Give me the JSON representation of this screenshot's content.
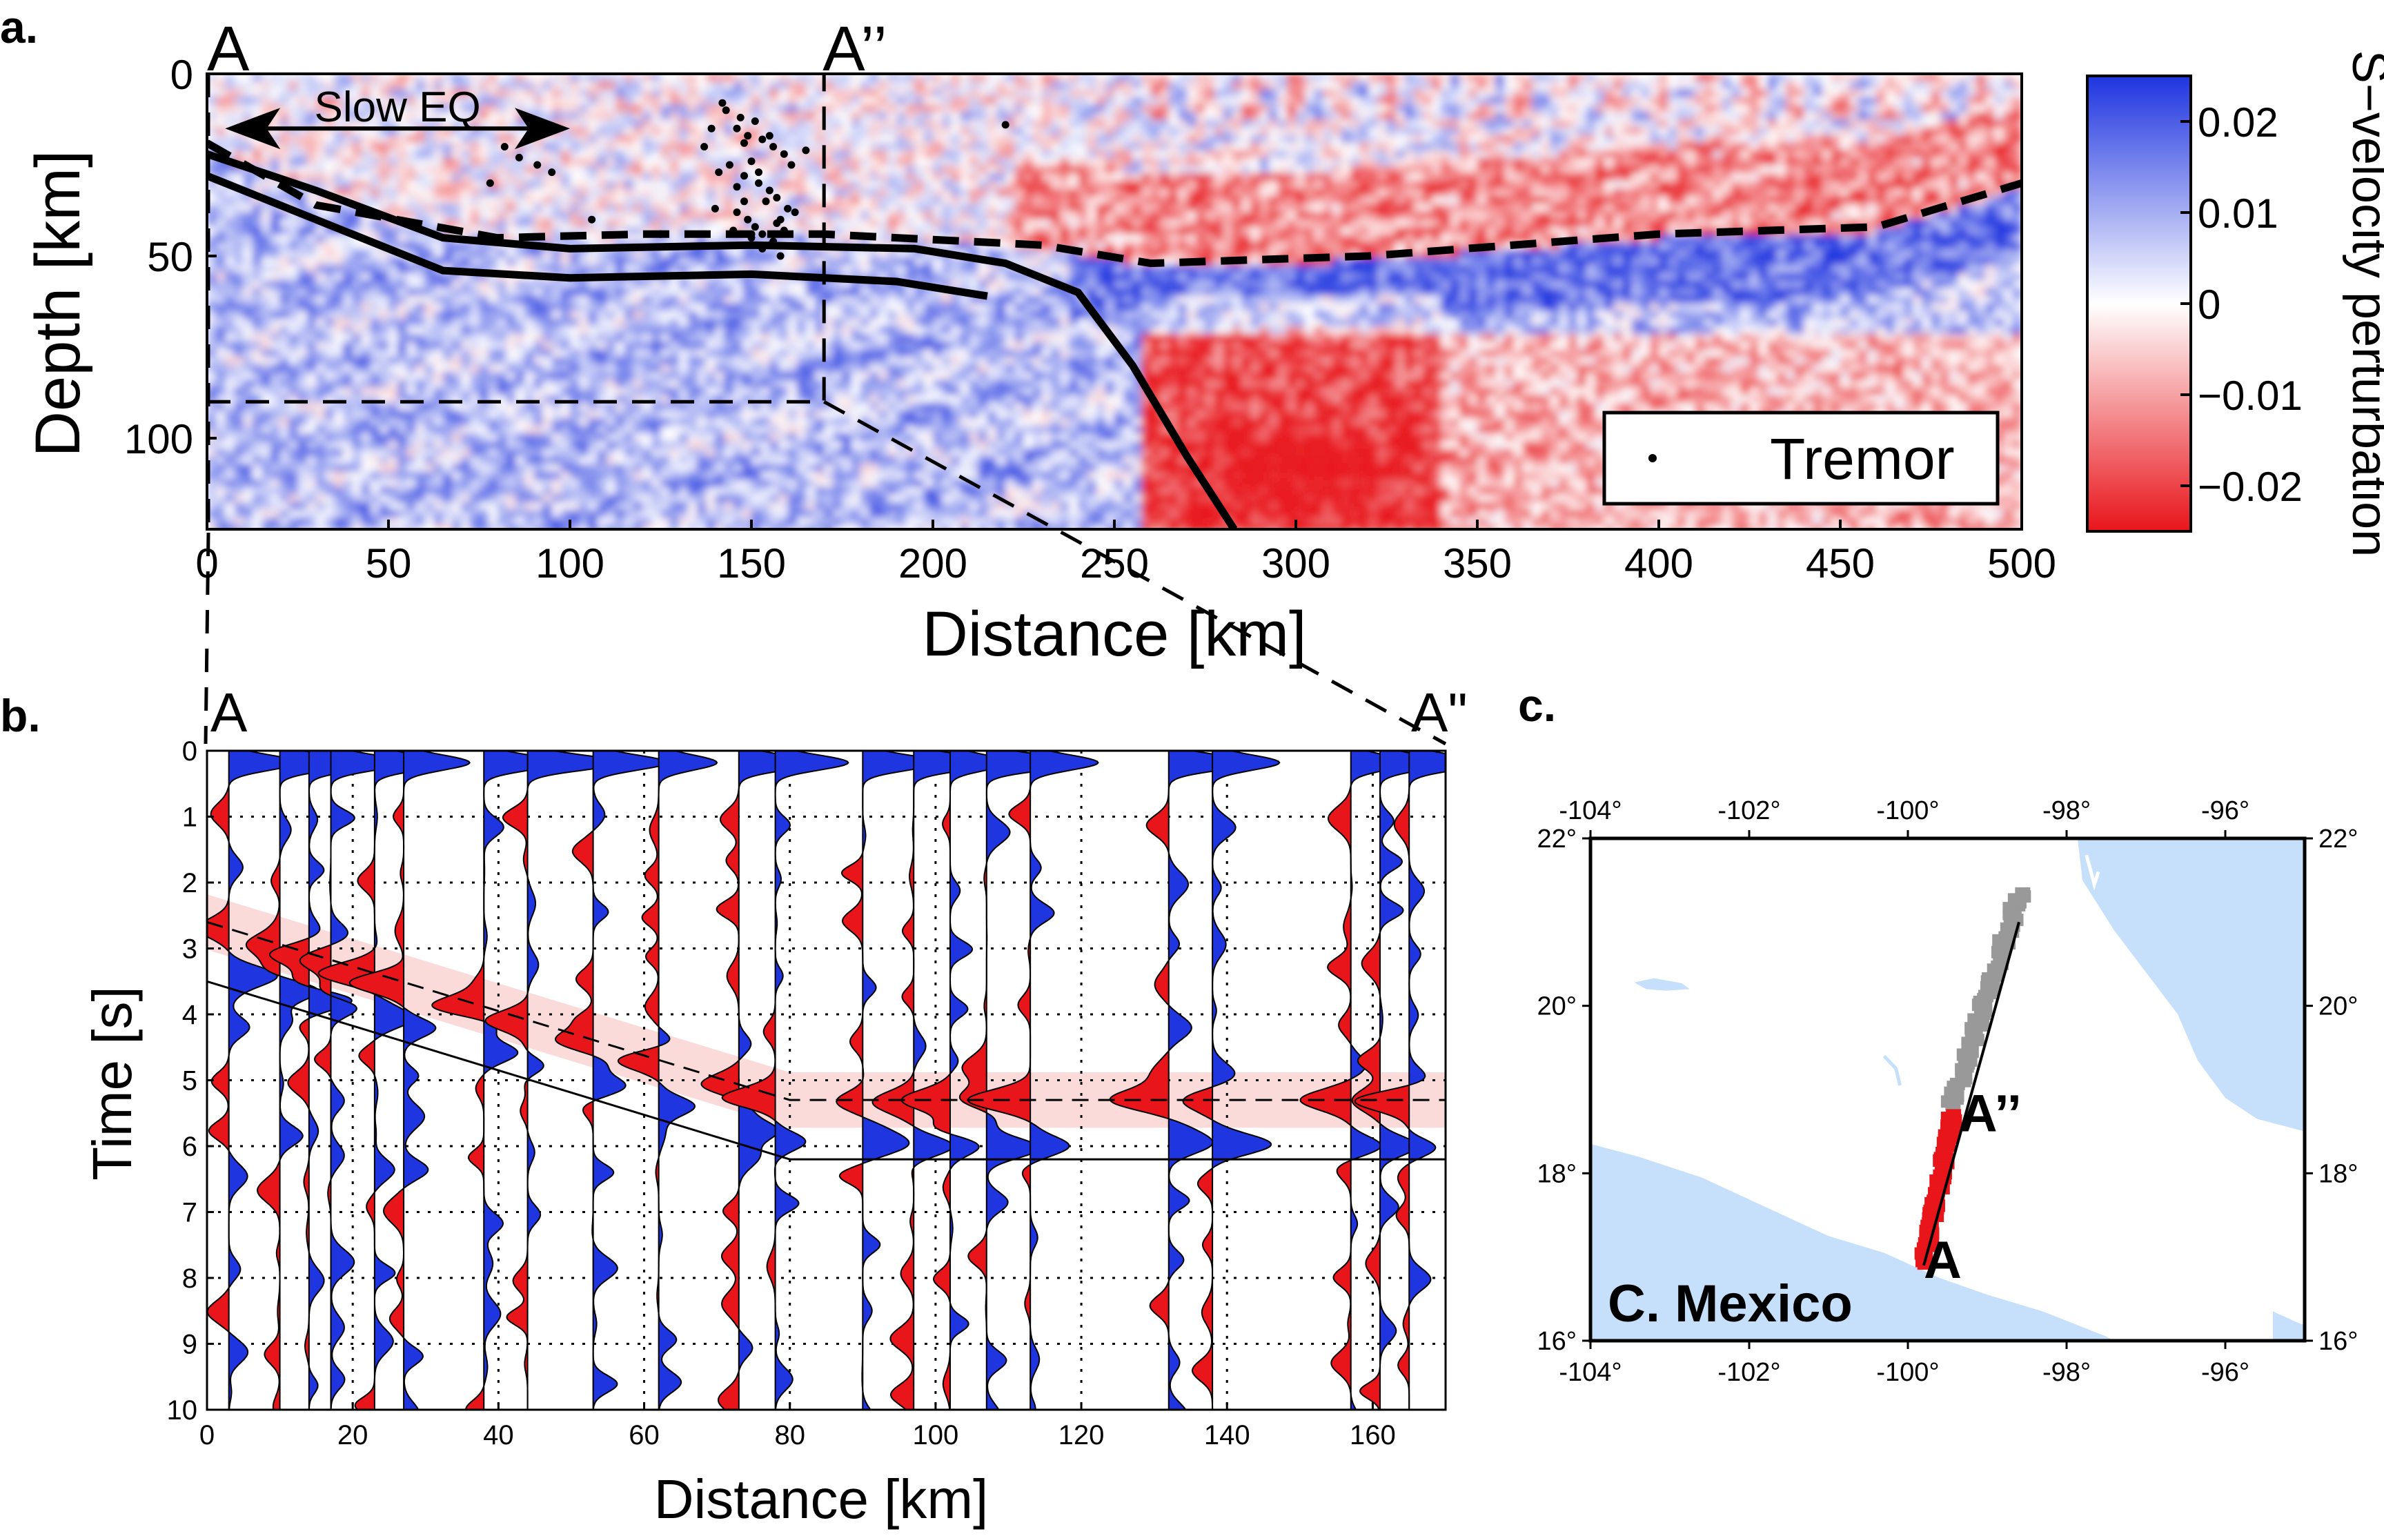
{
  "chart_data": [
    {
      "panel": "a.",
      "type": "heatmap",
      "title": "",
      "xlabel": "Distance [km]",
      "ylabel": "Depth [km]",
      "xlim": [
        0,
        500
      ],
      "ylim": [
        125,
        0
      ],
      "xticks": [
        0,
        50,
        100,
        150,
        200,
        250,
        300,
        350,
        400,
        450,
        500
      ],
      "yticks": [
        0,
        50,
        100
      ],
      "section_labels": {
        "start": "A",
        "end": "A’’"
      },
      "section_end_x": 170,
      "inset_box": {
        "x": [
          0,
          170
        ],
        "depth": [
          0,
          90
        ]
      },
      "annotation": {
        "text": "Slow EQ",
        "x_range": [
          5,
          100
        ],
        "depth": 15
      },
      "legend": {
        "entries": [
          "Tremor"
        ],
        "placement": "lower-right"
      },
      "colorbar": {
        "label": "S−velocity perturbation",
        "range": [
          -0.025,
          0.025
        ],
        "ticks": [
          0.02,
          0.01,
          0,
          -0.01,
          -0.02
        ],
        "tick_labels": [
          "0.02",
          "0.01",
          "0",
          "−0.01",
          "−0.02"
        ],
        "colors": {
          "negative": "#e8151b",
          "zero": "#ffffff",
          "positive": "#1f35e0"
        }
      },
      "slab_top": {
        "x": [
          0,
          30,
          65,
          100,
          150,
          195,
          220,
          240,
          255,
          270,
          283
        ],
        "depth": [
          22,
          32,
          45,
          48,
          47,
          48,
          52,
          60,
          80,
          105,
          125
        ]
      },
      "slab_bottom": {
        "x": [
          0,
          30,
          65,
          100,
          150,
          190,
          215
        ],
        "depth": [
          28,
          40,
          54,
          56,
          55,
          57,
          61
        ]
      },
      "moho": {
        "x": [
          0,
          30,
          80,
          120,
          170,
          230,
          260,
          320,
          400,
          460,
          500
        ],
        "depth": [
          19,
          36,
          45,
          44,
          44,
          47,
          52,
          50,
          44,
          42,
          30
        ]
      },
      "tremor": {
        "x": [
          82,
          91,
          78,
          95,
          143,
          147,
          151,
          146,
          149,
          153,
          156,
          159,
          150,
          144,
          141,
          148,
          152,
          155,
          157,
          154,
          160,
          162,
          158,
          149,
          151,
          145,
          153,
          150,
          156,
          155,
          161,
          139,
          137,
          148,
          146,
          150,
          153,
          158,
          159,
          146,
          140,
          148,
          152,
          155,
          86,
          106,
          125,
          220,
          165,
          142,
          157
        ],
        "depth": [
          20,
          25,
          30,
          27,
          10,
          12,
          13,
          15,
          17,
          18,
          20,
          22,
          24,
          25,
          27,
          28,
          30,
          32,
          34,
          35,
          37,
          38,
          40,
          40,
          42,
          43,
          44,
          45,
          46,
          47,
          25,
          15,
          20,
          35,
          38,
          44,
          48,
          50,
          43,
          31,
          37,
          19,
          27,
          17,
          23,
          40,
          44,
          14,
          21,
          8,
          41
        ]
      }
    },
    {
      "panel": "b.",
      "type": "line",
      "title": "",
      "xlabel": "Distance [km]",
      "ylabel": "Time [s]",
      "xlim": [
        0,
        170
      ],
      "ylim": [
        10,
        0
      ],
      "xticks": [
        0,
        20,
        40,
        60,
        80,
        100,
        120,
        140,
        160
      ],
      "yticks": [
        0,
        1,
        2,
        3,
        4,
        5,
        6,
        7,
        8,
        9,
        10
      ],
      "section_labels": {
        "start": "A",
        "end": "A\""
      },
      "trace_x": [
        3,
        10,
        14,
        17,
        23,
        27,
        38,
        44,
        53,
        62,
        73,
        78,
        90,
        97,
        102,
        107,
        113,
        132,
        138,
        157,
        161,
        165
      ],
      "trace_colors": {
        "positive": "#1f35e0",
        "negative": "#e8151b",
        "fill_opacity": 1
      },
      "shaded_band_color": "#fbdada",
      "dashed_phase": {
        "x": [
          0,
          80,
          170
        ],
        "t": [
          2.6,
          5.3,
          5.3
        ]
      },
      "solid_phase": {
        "x": [
          0,
          80,
          170
        ],
        "t": [
          3.5,
          6.2,
          6.2
        ]
      }
    },
    {
      "panel": "c.",
      "type": "map",
      "title": "",
      "region_label": "C. Mexico",
      "lon_range": [
        -104,
        -95
      ],
      "lat_range": [
        16,
        22
      ],
      "lon_ticks": [
        -104,
        -102,
        -100,
        -98,
        -96
      ],
      "lat_ticks": [
        16,
        18,
        20,
        22
      ],
      "lon_tick_labels": [
        "-104°",
        "-102°",
        "-100°",
        "-98°",
        "-96°"
      ],
      "lat_tick_labels": [
        "16°",
        "18°",
        "20°",
        "22°"
      ],
      "water_color": "#c6e0fb",
      "station_colors": {
        "section": "#e8151b",
        "other": "#999999"
      },
      "profile_line": {
        "lon": [
          -99.8,
          -98.6
        ],
        "lat": [
          16.9,
          21.0
        ]
      },
      "point_labels": [
        {
          "text": "A",
          "lon": -99.8,
          "lat": 16.75
        },
        {
          "text": "A’’",
          "lon": -99.35,
          "lat": 18.5
        }
      ]
    }
  ]
}
